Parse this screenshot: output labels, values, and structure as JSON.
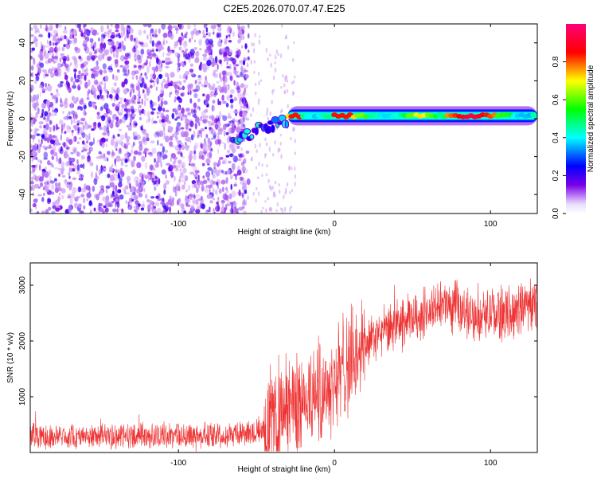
{
  "figure_title": "C2E5.2026.070.07.47.E25",
  "chart_data": [
    {
      "type": "heatmap",
      "name": "spectrogram",
      "xlabel": "Height of straight line (km)",
      "ylabel": "Frequency (Hz)",
      "xlim": [
        -195,
        130
      ],
      "ylim": [
        -50,
        50
      ],
      "xticks": [
        -100,
        0,
        100
      ],
      "yticks": [
        -40,
        -20,
        0,
        20,
        40
      ],
      "colorbar": {
        "label": "Normalized spectral amplitude",
        "range": [
          0,
          1
        ],
        "ticks": [
          0.0,
          0.2,
          0.4,
          0.6,
          0.8
        ],
        "tick_labels": [
          "0.0",
          "0.2",
          "0.4",
          "0.6",
          "0.8"
        ],
        "colors": [
          "#ffffff",
          "#7a00e6",
          "#0000ff",
          "#00ffff",
          "#00ff00",
          "#ffff00",
          "#ff0000",
          "#ff0077"
        ]
      },
      "features": {
        "noise_region_x": [
          -195,
          -60
        ],
        "noise_amplitude": [
          0.05,
          0.25
        ],
        "transition_x": [
          -65,
          -30
        ],
        "transition_freq": [
          -12,
          0
        ],
        "ridge_x": [
          -30,
          130
        ],
        "ridge_freq": 1.5,
        "ridge_peak_amplitude": 0.95
      }
    },
    {
      "type": "line",
      "name": "snr",
      "xlabel": "Height of straight line (km)",
      "ylabel": "SNR (10 * v/v)",
      "xlim": [
        -195,
        130
      ],
      "ylim": [
        0,
        3400
      ],
      "xticks": [
        -100,
        0,
        100
      ],
      "yticks": [
        1000,
        2000,
        3000
      ],
      "color": "#ee3333",
      "envelope": [
        {
          "x": -195,
          "y": 280
        },
        {
          "x": -150,
          "y": 300
        },
        {
          "x": -100,
          "y": 300
        },
        {
          "x": -60,
          "y": 330
        },
        {
          "x": -45,
          "y": 450
        },
        {
          "x": -30,
          "y": 800
        },
        {
          "x": -15,
          "y": 1000
        },
        {
          "x": 0,
          "y": 1300
        },
        {
          "x": 15,
          "y": 1800
        },
        {
          "x": 30,
          "y": 2150
        },
        {
          "x": 50,
          "y": 2400
        },
        {
          "x": 70,
          "y": 2650
        },
        {
          "x": 90,
          "y": 2450
        },
        {
          "x": 110,
          "y": 2500
        },
        {
          "x": 130,
          "y": 2700
        }
      ]
    }
  ]
}
